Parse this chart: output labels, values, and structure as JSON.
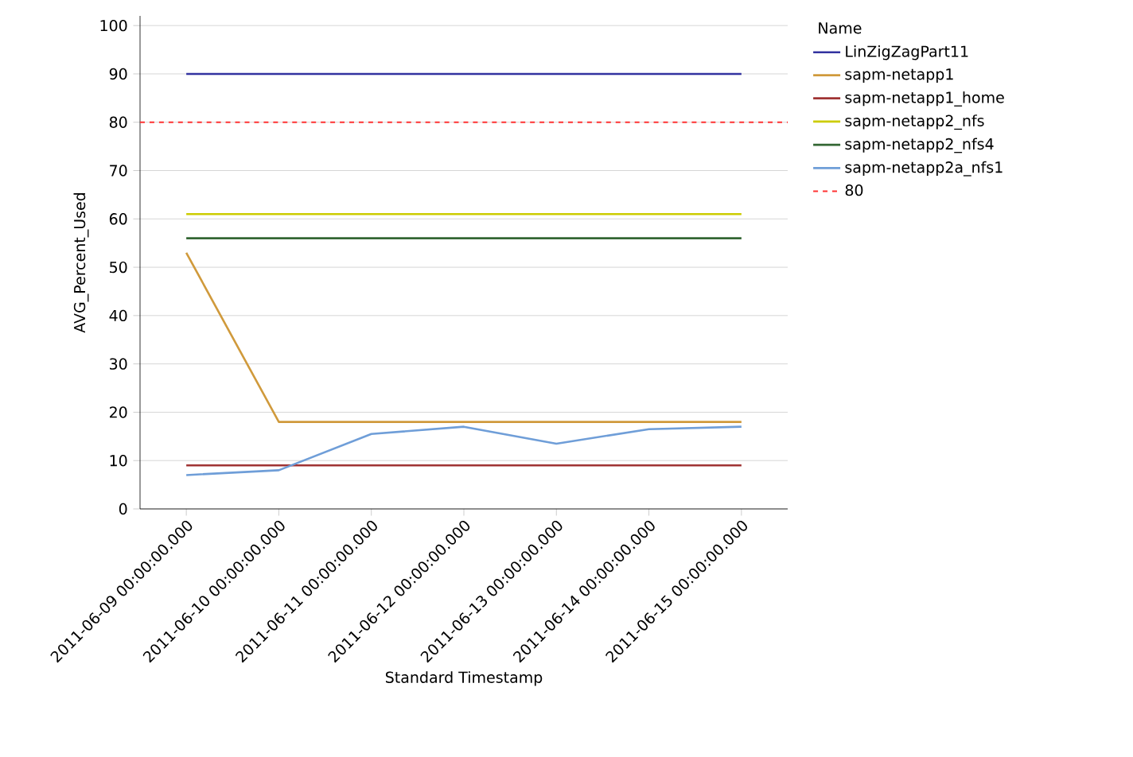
{
  "chart_data": {
    "type": "line",
    "xlabel": "Standard Timestamp",
    "ylabel": "AVG_Percent_Used",
    "legend_title": "Name",
    "categories": [
      "2011-06-09 00:00:00.000",
      "2011-06-10 00:00:00.000",
      "2011-06-11 00:00:00.000",
      "2011-06-12 00:00:00.000",
      "2011-06-13 00:00:00.000",
      "2011-06-14 00:00:00.000",
      "2011-06-15 00:00:00.000"
    ],
    "series": [
      {
        "name": "LinZigZagPart11",
        "color": "#3333a0",
        "values": [
          90,
          90,
          90,
          90,
          90,
          90,
          90
        ]
      },
      {
        "name": "sapm-netapp1",
        "color": "#d09a3c",
        "values": [
          53,
          18,
          18,
          18,
          18,
          18,
          18
        ]
      },
      {
        "name": "sapm-netapp1_home",
        "color": "#a03333",
        "values": [
          9,
          9,
          9,
          9,
          9,
          9,
          9
        ]
      },
      {
        "name": "sapm-netapp2_nfs",
        "color": "#cccc00",
        "values": [
          61,
          61,
          61,
          61,
          61,
          61,
          61
        ]
      },
      {
        "name": "sapm-netapp2_nfs4",
        "color": "#336633",
        "values": [
          56,
          56,
          56,
          56,
          56,
          56,
          56
        ]
      },
      {
        "name": "sapm-netapp2a_nfs1",
        "color": "#6f9ed8",
        "values": [
          7,
          8,
          15.5,
          17,
          13.5,
          16.5,
          17
        ]
      }
    ],
    "ref_lines": [
      {
        "axis": "y",
        "value": 80,
        "label": "80",
        "color": "#ff3333",
        "line_style": "dashed"
      }
    ],
    "ylim": [
      0,
      102
    ],
    "yticks": [
      0,
      10,
      20,
      30,
      40,
      50,
      60,
      70,
      80,
      90,
      100
    ],
    "grid": "y",
    "legend": "right",
    "marker": "none",
    "line_style": "solid"
  }
}
